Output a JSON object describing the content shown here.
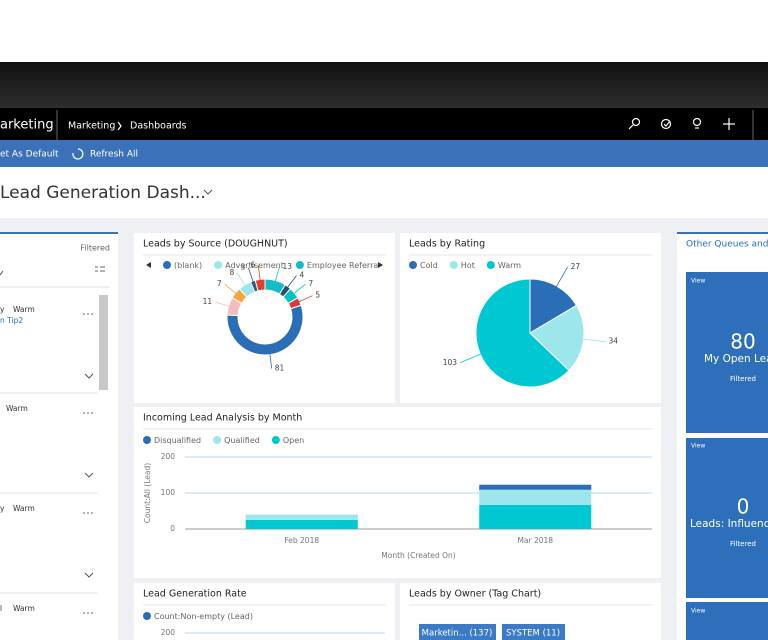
{
  "app": {
    "name": "arketing",
    "breadcrumb": [
      "Marketing",
      "Dashboards"
    ]
  },
  "command_bar": [
    "et As Default",
    "Refresh All"
  ],
  "dashboard": {
    "title": "Lead Generation Dash..."
  },
  "left_panel": {
    "filter": "Filtered",
    "items": [
      {
        "prefix": "y",
        "rating": "Warm",
        "link": "n Tip2"
      },
      {
        "rating": "Warm"
      },
      {
        "prefix": "y",
        "rating": "Warm"
      },
      {
        "prefix": "l",
        "rating": "Warm"
      }
    ]
  },
  "right_panel": {
    "title": "Other Queues and",
    "tiles": [
      {
        "action": "View",
        "count": 80,
        "label": "My Open Lea",
        "filter": "Filtered"
      },
      {
        "action": "View",
        "count": 0,
        "label": "Leads: Influence",
        "filter": "Filtered"
      },
      {
        "action": "View"
      }
    ]
  },
  "chart_data": [
    {
      "type": "doughnut",
      "title": "Leads by Source (DOUGHNUT)",
      "categories": [
        "(blank)",
        null,
        null,
        "Advertisement",
        null,
        null,
        "Employee Referra",
        null,
        null,
        null
      ],
      "values": [
        81,
        11,
        7,
        8,
        3,
        6,
        13,
        4,
        7,
        5
      ],
      "colors": [
        "#2a6eb8",
        "#f4bcbc",
        "#f5a83a",
        "#9ce6ec",
        "#2c5a91",
        "#e0402a",
        "#12bccb",
        "#2b4f73",
        "#00c3c3",
        "#d83b3b"
      ]
    },
    {
      "type": "pie",
      "title": "Leads by Rating",
      "categories": [
        "Cold",
        "Hot",
        "Warm"
      ],
      "values": [
        27,
        34,
        103
      ],
      "colors": [
        "#2a6eb8",
        "#9ce6ec",
        "#00c8d2"
      ]
    },
    {
      "type": "bar",
      "stacked": true,
      "title": "Incoming Lead Analysis by Month",
      "categories": [
        "Feb 2018",
        "Mar 2018"
      ],
      "series": [
        {
          "name": "Disqualified",
          "color": "#2a6eb8",
          "values": [
            0,
            14
          ]
        },
        {
          "name": "Qualified",
          "color": "#9ce6ec",
          "values": [
            15,
            42
          ]
        },
        {
          "name": "Open",
          "color": "#00c8d2",
          "values": [
            25,
            67
          ]
        }
      ],
      "ylim": [
        0,
        200
      ],
      "yticks": [
        0,
        100,
        200
      ],
      "ylabel": "Count:All (Lead)",
      "xlabel": "Month (Created On)"
    },
    {
      "type": "line",
      "title": "Lead Generation Rate",
      "series": [
        {
          "name": "Count:Non-empty (Lead)",
          "color": "#2a6eb8",
          "values": []
        }
      ],
      "ylim": [
        0,
        200
      ],
      "yticks": [
        200
      ]
    }
  ],
  "tag_chart": {
    "title": "Leads by Owner (Tag Chart)",
    "tags": [
      "Marketin... (137)",
      "SYSTEM (11)"
    ]
  }
}
